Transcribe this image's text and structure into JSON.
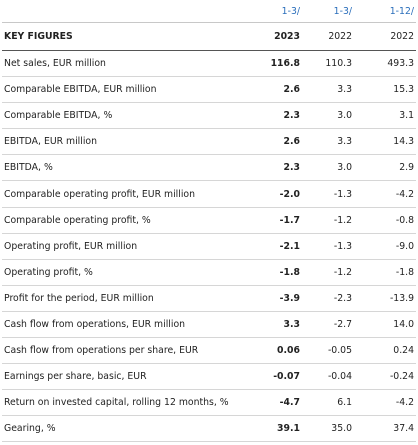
{
  "table": {
    "periods": [
      "1-3/",
      "1-3/",
      "1-12/"
    ],
    "title": "KEY FIGURES",
    "years": [
      "2023",
      "2022",
      "2022"
    ],
    "rows": [
      [
        "Net sales, EUR million",
        "116.8",
        "110.3",
        "493.3"
      ],
      [
        "Comparable EBITDA, EUR million",
        "2.6",
        "3.3",
        "15.3"
      ],
      [
        "Comparable EBITDA, %",
        "2.3",
        "3.0",
        "3.1"
      ],
      [
        "EBITDA, EUR million",
        "2.6",
        "3.3",
        "14.3"
      ],
      [
        "EBITDA, %",
        "2.3",
        "3.0",
        "2.9"
      ],
      [
        "Comparable operating profit, EUR million",
        "-2.0",
        "-1.3",
        "-4.2"
      ],
      [
        "Comparable operating profit, %",
        "-1.7",
        "-1.2",
        "-0.8"
      ],
      [
        "Operating profit, EUR million",
        "-2.1",
        "-1.3",
        "-9.0"
      ],
      [
        "Operating profit, %",
        "-1.8",
        "-1.2",
        "-1.8"
      ],
      [
        "Profit for the period, EUR million",
        "-3.9",
        "-2.3",
        "-13.9"
      ],
      [
        "Cash flow from operations, EUR million",
        "3.3",
        "-2.7",
        "14.0"
      ],
      [
        "Cash flow from operations per share, EUR",
        "0.06",
        "-0.05",
        "0.24"
      ],
      [
        "Earnings per share, basic, EUR",
        "-0.07",
        "-0.04",
        "-0.24"
      ],
      [
        "Return on invested capital, rolling 12 months, %",
        "-4.7",
        "6.1",
        "-4.2"
      ],
      [
        "Gearing, %",
        "39.1",
        "35.0",
        "37.4"
      ]
    ]
  }
}
